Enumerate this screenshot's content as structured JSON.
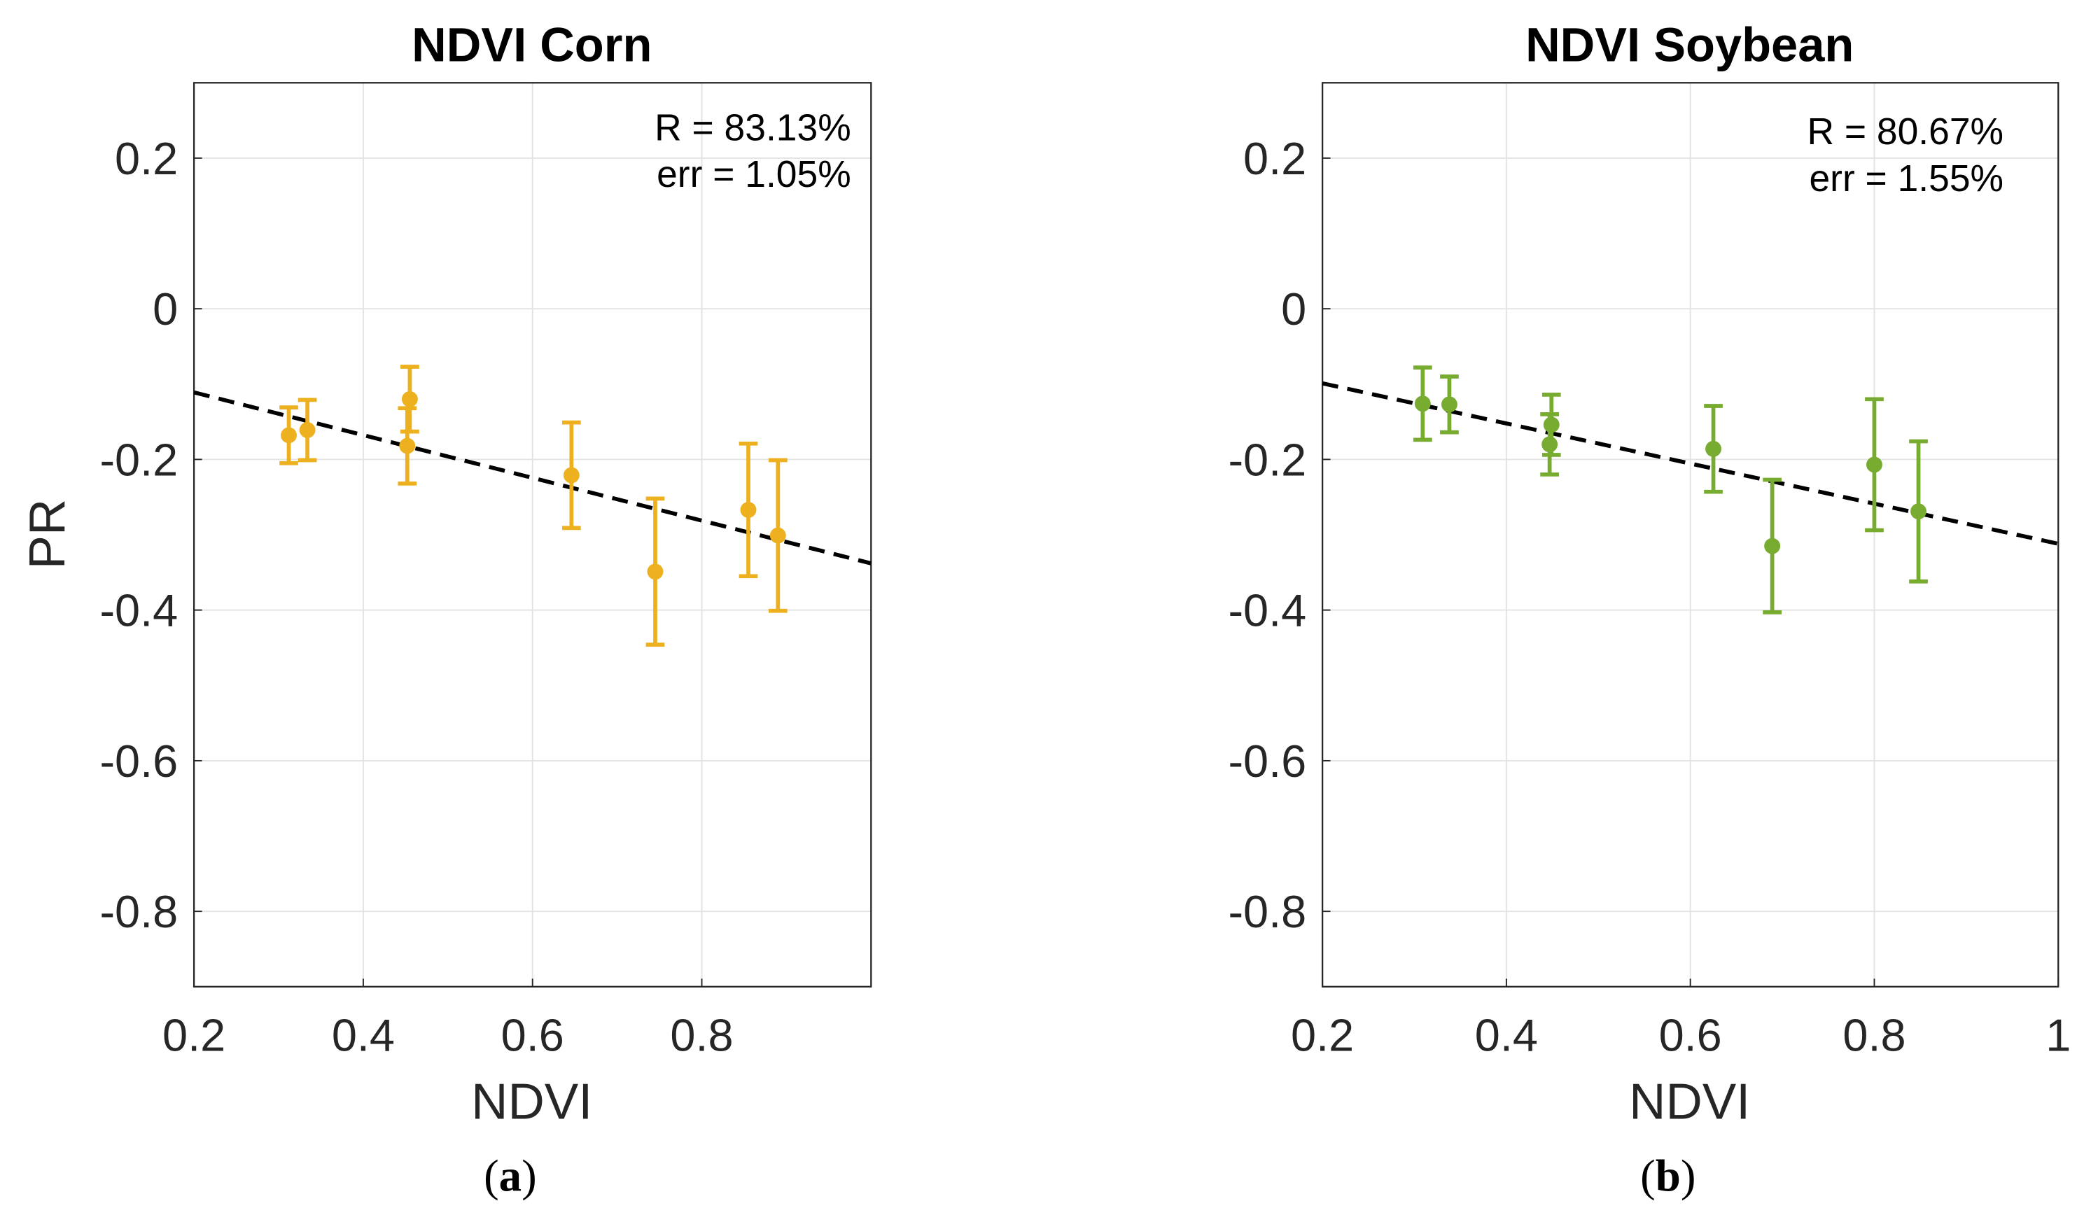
{
  "chart_data": [
    {
      "type": "scatter",
      "title": "NDVI Corn",
      "panel_label": "(a)",
      "panel_letter": "a",
      "xlabel": "NDVI",
      "ylabel": "PR",
      "xlim": [
        0.2,
        1.0
      ],
      "ylim": [
        -0.9,
        0.3
      ],
      "xticks": [
        0.2,
        0.4,
        0.6,
        0.8
      ],
      "xtick_labels": [
        "0.2",
        "0.4",
        "0.6",
        "0.8"
      ],
      "yticks": [
        0.2,
        0,
        -0.2,
        -0.4,
        -0.6,
        -0.8
      ],
      "ytick_labels": [
        "0.2",
        "0",
        "-0.2",
        "-0.4",
        "-0.6",
        "-0.8"
      ],
      "grid": true,
      "color": "#EDB120",
      "annotations": [
        "R = 83.13%",
        "err = 1.05%"
      ],
      "points": [
        {
          "x": 0.312,
          "y": -0.168,
          "err": 0.037
        },
        {
          "x": 0.334,
          "y": -0.161,
          "err": 0.04
        },
        {
          "x": 0.455,
          "y": -0.12,
          "err": 0.043
        },
        {
          "x": 0.452,
          "y": -0.182,
          "err": 0.05
        },
        {
          "x": 0.646,
          "y": -0.221,
          "err": 0.07
        },
        {
          "x": 0.745,
          "y": -0.349,
          "err": 0.097
        },
        {
          "x": 0.855,
          "y": -0.267,
          "err": 0.088
        },
        {
          "x": 0.89,
          "y": -0.301,
          "err": 0.1
        }
      ],
      "fit_line": {
        "x": [
          0.2,
          1.0
        ],
        "y": [
          -0.111,
          -0.338
        ]
      }
    },
    {
      "type": "scatter",
      "title": "NDVI Soybean",
      "panel_label": "(b)",
      "panel_letter": "b",
      "xlabel": "NDVI",
      "ylabel": "",
      "xlim": [
        0.2,
        1.0
      ],
      "ylim": [
        -0.9,
        0.3
      ],
      "xticks": [
        0.2,
        0.4,
        0.6,
        0.8,
        1.0
      ],
      "xtick_labels": [
        "0.2",
        "0.4",
        "0.6",
        "0.8",
        "1"
      ],
      "yticks": [
        0.2,
        0,
        -0.2,
        -0.4,
        -0.6,
        -0.8
      ],
      "ytick_labels": [
        "0.2",
        "0",
        "-0.2",
        "-0.4",
        "-0.6",
        "-0.8"
      ],
      "grid": true,
      "color": "#77AC30",
      "annotations": [
        "R = 80.67%",
        "err = 1.55%"
      ],
      "points": [
        {
          "x": 0.309,
          "y": -0.126,
          "err": 0.048
        },
        {
          "x": 0.338,
          "y": -0.127,
          "err": 0.037
        },
        {
          "x": 0.449,
          "y": -0.154,
          "err": 0.04
        },
        {
          "x": 0.447,
          "y": -0.18,
          "err": 0.04
        },
        {
          "x": 0.625,
          "y": -0.186,
          "err": 0.057
        },
        {
          "x": 0.689,
          "y": -0.315,
          "err": 0.088
        },
        {
          "x": 0.8,
          "y": -0.207,
          "err": 0.087
        },
        {
          "x": 0.848,
          "y": -0.269,
          "err": 0.093
        }
      ],
      "fit_line": {
        "x": [
          0.2,
          1.0
        ],
        "y": [
          -0.099,
          -0.312
        ]
      }
    }
  ]
}
